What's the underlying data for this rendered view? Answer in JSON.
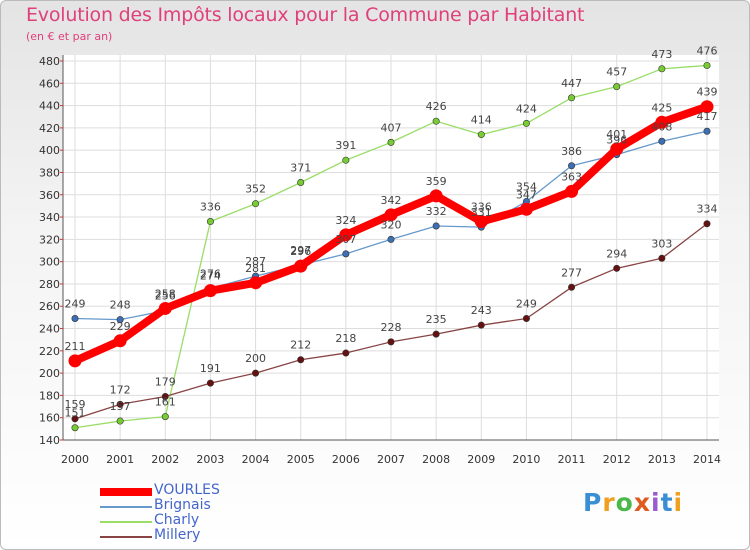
{
  "header": {
    "title": "Evolution des Impôts locaux pour la Commune par Habitant",
    "subtitle": "(en € et par an)"
  },
  "chart_data": {
    "type": "line",
    "title": "Evolution des Impôts locaux pour la Commune par Habitant",
    "subtitle": "(en € et par an)",
    "xlabel": "",
    "ylabel": "",
    "x": [
      "2000",
      "2001",
      "2002",
      "2003",
      "2004",
      "2005",
      "2006",
      "2007",
      "2008",
      "2009",
      "2010",
      "2011",
      "2012",
      "2013",
      "2014"
    ],
    "ylim": [
      140,
      480
    ],
    "yticks": [
      140,
      160,
      180,
      200,
      220,
      240,
      260,
      280,
      300,
      320,
      340,
      360,
      380,
      400,
      420,
      440,
      460,
      480
    ],
    "grid": true,
    "legend": "bottom-left",
    "series": [
      {
        "name": "VOURLES",
        "color": "#ff0000",
        "marker_color": "#ff0000",
        "values": [
          211,
          229,
          258,
          274,
          281,
          296,
          324,
          342,
          359,
          336,
          347,
          363,
          401,
          425,
          439
        ],
        "labels": [
          "211",
          "229",
          "258",
          "274",
          "281",
          "296",
          "324",
          "342",
          "359",
          "336",
          "347",
          "363",
          "401",
          "425",
          "439"
        ]
      },
      {
        "name": "Brignais",
        "color": "#6699cc",
        "marker_color": "#3d6fb4",
        "values": [
          249,
          248,
          256,
          276,
          287,
          297,
          307,
          320,
          332,
          331,
          354,
          386,
          396,
          408,
          417
        ],
        "labels": [
          "249",
          "248",
          "256",
          "276",
          "287",
          "297",
          "307",
          "320",
          "332",
          "331",
          "354",
          "386",
          "396",
          "408",
          "417"
        ]
      },
      {
        "name": "Charly",
        "color": "#99dd66",
        "marker_color": "#77cc33",
        "values": [
          151,
          157,
          161,
          336,
          352,
          371,
          391,
          407,
          426,
          414,
          424,
          447,
          457,
          473,
          476
        ],
        "labels": [
          "151",
          "157",
          "161",
          "336",
          "352",
          "371",
          "391",
          "407",
          "426",
          "414",
          "424",
          "447",
          "457",
          "473",
          "476"
        ]
      },
      {
        "name": "Millery",
        "color": "#884444",
        "marker_color": "#661111",
        "values": [
          159,
          172,
          179,
          191,
          200,
          212,
          218,
          228,
          235,
          243,
          249,
          277,
          294,
          303,
          334
        ],
        "labels": [
          "159",
          "172",
          "179",
          "191",
          "200",
          "212",
          "218",
          "228",
          "235",
          "243",
          "249",
          "277",
          "294",
          "303",
          "334"
        ]
      }
    ]
  },
  "legend": {
    "items": [
      "VOURLES",
      "Brignais",
      "Charly",
      "Millery"
    ]
  },
  "logo": {
    "letters": [
      "P",
      "r",
      "o",
      "x",
      "i",
      "t",
      "i"
    ]
  }
}
